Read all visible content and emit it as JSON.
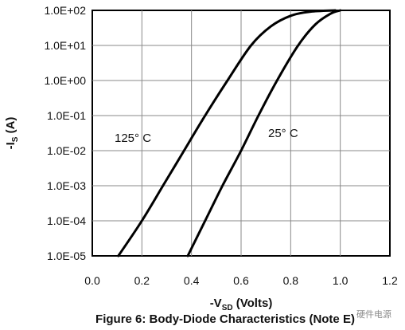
{
  "chart_data": {
    "type": "line",
    "y_scale": "log",
    "x_range": [
      0.0,
      1.2
    ],
    "y_range": [
      1e-05,
      100
    ],
    "x_ticks": [
      "0.0",
      "0.2",
      "0.4",
      "0.6",
      "0.8",
      "1.0",
      "1.2"
    ],
    "y_ticks": [
      "1.0E-05",
      "1.0E-04",
      "1.0E-03",
      "1.0E-02",
      "1.0E-01",
      "1.0E+00",
      "1.0E+01",
      "1.0E+02"
    ],
    "grid": true,
    "xlabel": "-VSD (Volts)",
    "ylabel": "-IS (A)",
    "caption": "Figure 6: Body-Diode Characteristics (Note E)",
    "series": [
      {
        "name": "125° C",
        "points": [
          [
            0.105,
            1e-05
          ],
          [
            0.2,
            0.0001
          ],
          [
            0.285,
            0.001
          ],
          [
            0.37,
            0.01
          ],
          [
            0.455,
            0.1
          ],
          [
            0.545,
            1
          ],
          [
            0.64,
            10
          ],
          [
            0.72,
            35
          ],
          [
            0.8,
            70
          ],
          [
            0.88,
            92
          ],
          [
            0.98,
            100
          ]
        ]
      },
      {
        "name": "25° C",
        "points": [
          [
            0.385,
            1e-05
          ],
          [
            0.455,
            0.0001
          ],
          [
            0.525,
            0.001
          ],
          [
            0.6,
            0.01
          ],
          [
            0.67,
            0.1
          ],
          [
            0.745,
            1
          ],
          [
            0.83,
            10
          ],
          [
            0.9,
            40
          ],
          [
            0.96,
            80
          ],
          [
            1.0,
            100
          ]
        ]
      }
    ],
    "annotations": [
      "125° C",
      "25° C"
    ]
  },
  "watermark": "硬件电源"
}
